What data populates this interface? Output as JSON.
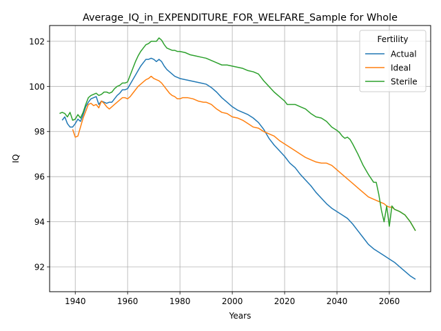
{
  "chart_data": {
    "type": "line",
    "title": "Average_IQ_in_EXPENDITURE_FOR_WELFARE_Sample for Whole",
    "xlabel": "Years",
    "ylabel": "IQ",
    "xlim": [
      1930.2,
      2075.8
    ],
    "ylim": [
      90.9,
      102.7
    ],
    "xticks": [
      1940,
      1960,
      1980,
      2000,
      2020,
      2040,
      2060
    ],
    "yticks": [
      92,
      94,
      96,
      98,
      100,
      102
    ],
    "grid": true,
    "legend": {
      "title": "Fertility",
      "position": "top-right"
    },
    "series": [
      {
        "name": "Actual",
        "color": "#1f77b4",
        "points": [
          [
            1935,
            98.5
          ],
          [
            1936,
            98.65
          ],
          [
            1937,
            98.35
          ],
          [
            1938,
            98.2
          ],
          [
            1939,
            98.2
          ],
          [
            1940,
            98.35
          ],
          [
            1941,
            98.55
          ],
          [
            1942,
            98.45
          ],
          [
            1943,
            98.75
          ],
          [
            1944,
            99.1
          ],
          [
            1945,
            99.3
          ],
          [
            1946,
            99.45
          ],
          [
            1947,
            99.5
          ],
          [
            1948,
            99.55
          ],
          [
            1949,
            99.2
          ],
          [
            1950,
            99.35
          ],
          [
            1951,
            99.3
          ],
          [
            1952,
            99.25
          ],
          [
            1953,
            99.3
          ],
          [
            1954,
            99.3
          ],
          [
            1955,
            99.45
          ],
          [
            1956,
            99.6
          ],
          [
            1957,
            99.7
          ],
          [
            1958,
            99.85
          ],
          [
            1959,
            99.85
          ],
          [
            1960,
            99.9
          ],
          [
            1961,
            100.1
          ],
          [
            1962,
            100.3
          ],
          [
            1963,
            100.5
          ],
          [
            1964,
            100.7
          ],
          [
            1965,
            100.9
          ],
          [
            1966,
            101.05
          ],
          [
            1967,
            101.2
          ],
          [
            1968,
            101.2
          ],
          [
            1969,
            101.25
          ],
          [
            1970,
            101.2
          ],
          [
            1971,
            101.1
          ],
          [
            1972,
            101.2
          ],
          [
            1973,
            101.1
          ],
          [
            1974,
            100.9
          ],
          [
            1975,
            100.75
          ],
          [
            1976,
            100.65
          ],
          [
            1977,
            100.55
          ],
          [
            1978,
            100.45
          ],
          [
            1979,
            100.4
          ],
          [
            1980,
            100.35
          ],
          [
            1982,
            100.3
          ],
          [
            1984,
            100.25
          ],
          [
            1986,
            100.2
          ],
          [
            1988,
            100.15
          ],
          [
            1990,
            100.1
          ],
          [
            1992,
            99.95
          ],
          [
            1994,
            99.75
          ],
          [
            1996,
            99.5
          ],
          [
            1998,
            99.3
          ],
          [
            2000,
            99.1
          ],
          [
            2002,
            98.95
          ],
          [
            2004,
            98.85
          ],
          [
            2006,
            98.75
          ],
          [
            2008,
            98.6
          ],
          [
            2010,
            98.4
          ],
          [
            2012,
            98.1
          ],
          [
            2014,
            97.7
          ],
          [
            2016,
            97.4
          ],
          [
            2018,
            97.15
          ],
          [
            2020,
            96.9
          ],
          [
            2022,
            96.6
          ],
          [
            2024,
            96.4
          ],
          [
            2026,
            96.1
          ],
          [
            2028,
            95.85
          ],
          [
            2030,
            95.6
          ],
          [
            2032,
            95.3
          ],
          [
            2034,
            95.05
          ],
          [
            2036,
            94.8
          ],
          [
            2038,
            94.6
          ],
          [
            2040,
            94.45
          ],
          [
            2042,
            94.3
          ],
          [
            2044,
            94.15
          ],
          [
            2046,
            93.9
          ],
          [
            2048,
            93.6
          ],
          [
            2050,
            93.3
          ],
          [
            2052,
            93.0
          ],
          [
            2054,
            92.8
          ],
          [
            2056,
            92.65
          ],
          [
            2058,
            92.5
          ],
          [
            2060,
            92.35
          ],
          [
            2062,
            92.2
          ],
          [
            2064,
            92.0
          ],
          [
            2066,
            91.8
          ],
          [
            2068,
            91.6
          ],
          [
            2070,
            91.45
          ]
        ]
      },
      {
        "name": "Ideal",
        "color": "#ff7f0e",
        "points": [
          [
            1939,
            98.1
          ],
          [
            1940,
            97.75
          ],
          [
            1941,
            97.8
          ],
          [
            1942,
            98.2
          ],
          [
            1943,
            98.6
          ],
          [
            1944,
            98.9
          ],
          [
            1945,
            99.2
          ],
          [
            1946,
            99.25
          ],
          [
            1947,
            99.15
          ],
          [
            1948,
            99.2
          ],
          [
            1949,
            99.05
          ],
          [
            1950,
            99.35
          ],
          [
            1951,
            99.25
          ],
          [
            1952,
            99.1
          ],
          [
            1953,
            99.0
          ],
          [
            1954,
            99.1
          ],
          [
            1955,
            99.2
          ],
          [
            1956,
            99.3
          ],
          [
            1957,
            99.4
          ],
          [
            1958,
            99.5
          ],
          [
            1959,
            99.5
          ],
          [
            1960,
            99.45
          ],
          [
            1961,
            99.55
          ],
          [
            1962,
            99.7
          ],
          [
            1963,
            99.85
          ],
          [
            1964,
            100.0
          ],
          [
            1965,
            100.1
          ],
          [
            1966,
            100.2
          ],
          [
            1967,
            100.3
          ],
          [
            1968,
            100.35
          ],
          [
            1969,
            100.45
          ],
          [
            1970,
            100.35
          ],
          [
            1971,
            100.3
          ],
          [
            1972,
            100.25
          ],
          [
            1973,
            100.15
          ],
          [
            1974,
            100.0
          ],
          [
            1975,
            99.85
          ],
          [
            1976,
            99.7
          ],
          [
            1977,
            99.6
          ],
          [
            1978,
            99.55
          ],
          [
            1979,
            99.45
          ],
          [
            1980,
            99.45
          ],
          [
            1981,
            99.5
          ],
          [
            1983,
            99.5
          ],
          [
            1985,
            99.45
          ],
          [
            1987,
            99.35
          ],
          [
            1989,
            99.3
          ],
          [
            1990,
            99.3
          ],
          [
            1992,
            99.2
          ],
          [
            1994,
            99.0
          ],
          [
            1996,
            98.85
          ],
          [
            1998,
            98.8
          ],
          [
            2000,
            98.65
          ],
          [
            2002,
            98.6
          ],
          [
            2004,
            98.5
          ],
          [
            2006,
            98.35
          ],
          [
            2008,
            98.2
          ],
          [
            2010,
            98.15
          ],
          [
            2012,
            98.0
          ],
          [
            2014,
            97.9
          ],
          [
            2016,
            97.8
          ],
          [
            2018,
            97.6
          ],
          [
            2020,
            97.45
          ],
          [
            2022,
            97.3
          ],
          [
            2024,
            97.15
          ],
          [
            2026,
            97.0
          ],
          [
            2028,
            96.85
          ],
          [
            2030,
            96.75
          ],
          [
            2032,
            96.65
          ],
          [
            2034,
            96.6
          ],
          [
            2036,
            96.6
          ],
          [
            2038,
            96.5
          ],
          [
            2040,
            96.3
          ],
          [
            2042,
            96.1
          ],
          [
            2044,
            95.9
          ],
          [
            2046,
            95.7
          ],
          [
            2048,
            95.5
          ],
          [
            2050,
            95.3
          ],
          [
            2052,
            95.1
          ],
          [
            2054,
            95.0
          ],
          [
            2056,
            94.9
          ],
          [
            2058,
            94.8
          ],
          [
            2059,
            94.7
          ],
          [
            2060,
            94.65
          ],
          [
            2061,
            94.65
          ],
          [
            2062,
            94.55
          ],
          [
            2064,
            94.45
          ],
          [
            2066,
            94.3
          ],
          [
            2068,
            94.0
          ],
          [
            2070,
            93.6
          ]
        ]
      },
      {
        "name": "Sterile",
        "color": "#2ca02c",
        "points": [
          [
            1934,
            98.8
          ],
          [
            1935,
            98.85
          ],
          [
            1936,
            98.8
          ],
          [
            1937,
            98.65
          ],
          [
            1938,
            98.85
          ],
          [
            1939,
            98.5
          ],
          [
            1940,
            98.55
          ],
          [
            1941,
            98.75
          ],
          [
            1942,
            98.6
          ],
          [
            1943,
            98.85
          ],
          [
            1944,
            99.2
          ],
          [
            1945,
            99.5
          ],
          [
            1946,
            99.6
          ],
          [
            1947,
            99.65
          ],
          [
            1948,
            99.7
          ],
          [
            1949,
            99.6
          ],
          [
            1950,
            99.65
          ],
          [
            1951,
            99.75
          ],
          [
            1952,
            99.75
          ],
          [
            1953,
            99.7
          ],
          [
            1954,
            99.75
          ],
          [
            1955,
            99.9
          ],
          [
            1956,
            100.0
          ],
          [
            1957,
            100.05
          ],
          [
            1958,
            100.15
          ],
          [
            1959,
            100.15
          ],
          [
            1960,
            100.2
          ],
          [
            1961,
            100.5
          ],
          [
            1962,
            100.8
          ],
          [
            1963,
            101.1
          ],
          [
            1964,
            101.35
          ],
          [
            1965,
            101.55
          ],
          [
            1966,
            101.7
          ],
          [
            1967,
            101.85
          ],
          [
            1968,
            101.9
          ],
          [
            1969,
            102.0
          ],
          [
            1970,
            102.0
          ],
          [
            1971,
            102.0
          ],
          [
            1972,
            102.15
          ],
          [
            1973,
            102.05
          ],
          [
            1974,
            101.85
          ],
          [
            1975,
            101.7
          ],
          [
            1976,
            101.65
          ],
          [
            1977,
            101.6
          ],
          [
            1978,
            101.6
          ],
          [
            1979,
            101.55
          ],
          [
            1980,
            101.55
          ],
          [
            1982,
            101.5
          ],
          [
            1984,
            101.4
          ],
          [
            1986,
            101.35
          ],
          [
            1988,
            101.3
          ],
          [
            1990,
            101.25
          ],
          [
            1992,
            101.15
          ],
          [
            1994,
            101.05
          ],
          [
            1996,
            100.95
          ],
          [
            1998,
            100.95
          ],
          [
            2000,
            100.9
          ],
          [
            2002,
            100.85
          ],
          [
            2004,
            100.8
          ],
          [
            2006,
            100.7
          ],
          [
            2008,
            100.65
          ],
          [
            2010,
            100.55
          ],
          [
            2012,
            100.25
          ],
          [
            2014,
            100.0
          ],
          [
            2016,
            99.75
          ],
          [
            2018,
            99.55
          ],
          [
            2020,
            99.35
          ],
          [
            2021,
            99.2
          ],
          [
            2022,
            99.2
          ],
          [
            2024,
            99.2
          ],
          [
            2026,
            99.1
          ],
          [
            2028,
            99.0
          ],
          [
            2030,
            98.8
          ],
          [
            2032,
            98.65
          ],
          [
            2034,
            98.6
          ],
          [
            2036,
            98.45
          ],
          [
            2038,
            98.2
          ],
          [
            2040,
            98.05
          ],
          [
            2041,
            97.95
          ],
          [
            2042,
            97.8
          ],
          [
            2043,
            97.7
          ],
          [
            2044,
            97.75
          ],
          [
            2045,
            97.65
          ],
          [
            2046,
            97.45
          ],
          [
            2048,
            97.0
          ],
          [
            2050,
            96.5
          ],
          [
            2052,
            96.1
          ],
          [
            2054,
            95.75
          ],
          [
            2055,
            95.75
          ],
          [
            2056,
            95.2
          ],
          [
            2057,
            94.5
          ],
          [
            2058,
            94.0
          ],
          [
            2059,
            94.7
          ],
          [
            2060,
            93.8
          ],
          [
            2061,
            94.7
          ],
          [
            2062,
            94.55
          ],
          [
            2064,
            94.45
          ],
          [
            2066,
            94.3
          ],
          [
            2068,
            94.0
          ],
          [
            2070,
            93.6
          ]
        ]
      }
    ]
  }
}
